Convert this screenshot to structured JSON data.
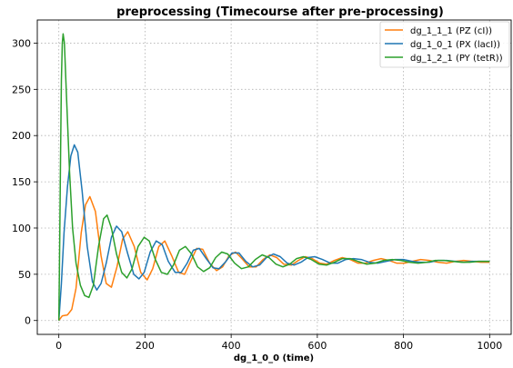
{
  "chart_data": {
    "type": "line",
    "title": "preprocessing (Timecourse after pre-processing)",
    "xlabel": "dg_1_0_0 (time)",
    "ylabel": "",
    "xlim": [
      -50,
      1050
    ],
    "ylim": [
      -15,
      325
    ],
    "xticks": [
      0,
      200,
      400,
      600,
      800,
      1000
    ],
    "yticks": [
      0,
      50,
      100,
      150,
      200,
      250,
      300
    ],
    "grid": true,
    "legend_position": "top-right",
    "series": [
      {
        "name": "dg_1_1_1 (PZ (cI))",
        "color": "#ff7f0e",
        "points": [
          [
            0,
            0
          ],
          [
            8,
            5
          ],
          [
            20,
            6
          ],
          [
            30,
            12
          ],
          [
            40,
            35
          ],
          [
            52,
            95
          ],
          [
            62,
            125
          ],
          [
            72,
            134
          ],
          [
            85,
            118
          ],
          [
            98,
            70
          ],
          [
            110,
            40
          ],
          [
            122,
            36
          ],
          [
            135,
            58
          ],
          [
            148,
            88
          ],
          [
            160,
            96
          ],
          [
            175,
            80
          ],
          [
            190,
            52
          ],
          [
            205,
            44
          ],
          [
            218,
            56
          ],
          [
            232,
            80
          ],
          [
            246,
            86
          ],
          [
            262,
            70
          ],
          [
            278,
            52
          ],
          [
            292,
            50
          ],
          [
            306,
            64
          ],
          [
            320,
            78
          ],
          [
            334,
            77
          ],
          [
            350,
            62
          ],
          [
            366,
            54
          ],
          [
            380,
            58
          ],
          [
            395,
            70
          ],
          [
            410,
            74
          ],
          [
            425,
            67
          ],
          [
            442,
            58
          ],
          [
            458,
            58
          ],
          [
            474,
            66
          ],
          [
            490,
            71
          ],
          [
            506,
            68
          ],
          [
            522,
            61
          ],
          [
            540,
            60
          ],
          [
            556,
            65
          ],
          [
            572,
            69
          ],
          [
            588,
            67
          ],
          [
            606,
            62
          ],
          [
            622,
            61
          ],
          [
            640,
            65
          ],
          [
            658,
            68
          ],
          [
            676,
            66
          ],
          [
            694,
            62
          ],
          [
            712,
            62
          ],
          [
            730,
            65
          ],
          [
            748,
            67
          ],
          [
            766,
            65
          ],
          [
            784,
            62
          ],
          [
            802,
            62
          ],
          [
            820,
            64
          ],
          [
            840,
            66
          ],
          [
            860,
            65
          ],
          [
            880,
            63
          ],
          [
            900,
            62
          ],
          [
            920,
            64
          ],
          [
            940,
            65
          ],
          [
            960,
            64
          ],
          [
            980,
            63
          ],
          [
            1000,
            63
          ]
        ]
      },
      {
        "name": "dg_1_0_1 (PX (lacI))",
        "color": "#1f77b4",
        "points": [
          [
            0,
            0
          ],
          [
            6,
            40
          ],
          [
            12,
            95
          ],
          [
            20,
            145
          ],
          [
            28,
            178
          ],
          [
            36,
            190
          ],
          [
            44,
            182
          ],
          [
            54,
            140
          ],
          [
            66,
            80
          ],
          [
            78,
            42
          ],
          [
            88,
            33
          ],
          [
            98,
            40
          ],
          [
            110,
            62
          ],
          [
            122,
            90
          ],
          [
            134,
            102
          ],
          [
            146,
            96
          ],
          [
            160,
            72
          ],
          [
            174,
            50
          ],
          [
            186,
            45
          ],
          [
            198,
            52
          ],
          [
            212,
            74
          ],
          [
            226,
            86
          ],
          [
            240,
            82
          ],
          [
            254,
            64
          ],
          [
            270,
            52
          ],
          [
            284,
            52
          ],
          [
            298,
            62
          ],
          [
            312,
            76
          ],
          [
            326,
            78
          ],
          [
            342,
            67
          ],
          [
            358,
            57
          ],
          [
            372,
            56
          ],
          [
            388,
            64
          ],
          [
            402,
            73
          ],
          [
            418,
            73
          ],
          [
            434,
            64
          ],
          [
            450,
            58
          ],
          [
            466,
            60
          ],
          [
            482,
            68
          ],
          [
            498,
            72
          ],
          [
            514,
            69
          ],
          [
            530,
            62
          ],
          [
            546,
            60
          ],
          [
            562,
            63
          ],
          [
            578,
            68
          ],
          [
            594,
            69
          ],
          [
            612,
            66
          ],
          [
            630,
            62
          ],
          [
            648,
            62
          ],
          [
            666,
            66
          ],
          [
            684,
            67
          ],
          [
            702,
            66
          ],
          [
            720,
            63
          ],
          [
            740,
            62
          ],
          [
            760,
            64
          ],
          [
            780,
            66
          ],
          [
            800,
            66
          ],
          [
            820,
            64
          ],
          [
            840,
            63
          ],
          [
            860,
            63
          ],
          [
            880,
            65
          ],
          [
            900,
            65
          ],
          [
            920,
            64
          ],
          [
            940,
            63
          ],
          [
            960,
            64
          ],
          [
            980,
            64
          ],
          [
            1000,
            64
          ]
        ]
      },
      {
        "name": "dg_1_2_1 (PY (tetR))",
        "color": "#2ca02c",
        "points": [
          [
            0,
            0
          ],
          [
            2,
            80
          ],
          [
            4,
            180
          ],
          [
            6,
            260
          ],
          [
            8,
            300
          ],
          [
            10,
            310
          ],
          [
            13,
            300
          ],
          [
            18,
            240
          ],
          [
            25,
            160
          ],
          [
            32,
            100
          ],
          [
            40,
            62
          ],
          [
            50,
            38
          ],
          [
            60,
            27
          ],
          [
            70,
            25
          ],
          [
            80,
            38
          ],
          [
            92,
            80
          ],
          [
            104,
            110
          ],
          [
            112,
            114
          ],
          [
            122,
            100
          ],
          [
            134,
            72
          ],
          [
            146,
            52
          ],
          [
            158,
            46
          ],
          [
            170,
            56
          ],
          [
            184,
            80
          ],
          [
            198,
            90
          ],
          [
            210,
            86
          ],
          [
            224,
            66
          ],
          [
            238,
            52
          ],
          [
            252,
            50
          ],
          [
            266,
            60
          ],
          [
            280,
            76
          ],
          [
            294,
            80
          ],
          [
            308,
            72
          ],
          [
            322,
            58
          ],
          [
            336,
            53
          ],
          [
            350,
            57
          ],
          [
            364,
            68
          ],
          [
            378,
            74
          ],
          [
            392,
            72
          ],
          [
            408,
            62
          ],
          [
            424,
            56
          ],
          [
            440,
            58
          ],
          [
            456,
            66
          ],
          [
            472,
            71
          ],
          [
            488,
            68
          ],
          [
            504,
            61
          ],
          [
            520,
            58
          ],
          [
            536,
            61
          ],
          [
            552,
            67
          ],
          [
            568,
            69
          ],
          [
            586,
            66
          ],
          [
            604,
            61
          ],
          [
            622,
            60
          ],
          [
            640,
            63
          ],
          [
            658,
            67
          ],
          [
            676,
            67
          ],
          [
            694,
            64
          ],
          [
            714,
            61
          ],
          [
            734,
            62
          ],
          [
            754,
            65
          ],
          [
            774,
            66
          ],
          [
            794,
            65
          ],
          [
            814,
            63
          ],
          [
            834,
            62
          ],
          [
            854,
            63
          ],
          [
            874,
            65
          ],
          [
            894,
            65
          ],
          [
            914,
            64
          ],
          [
            934,
            63
          ],
          [
            954,
            63
          ],
          [
            974,
            64
          ],
          [
            1000,
            64
          ]
        ]
      }
    ]
  }
}
